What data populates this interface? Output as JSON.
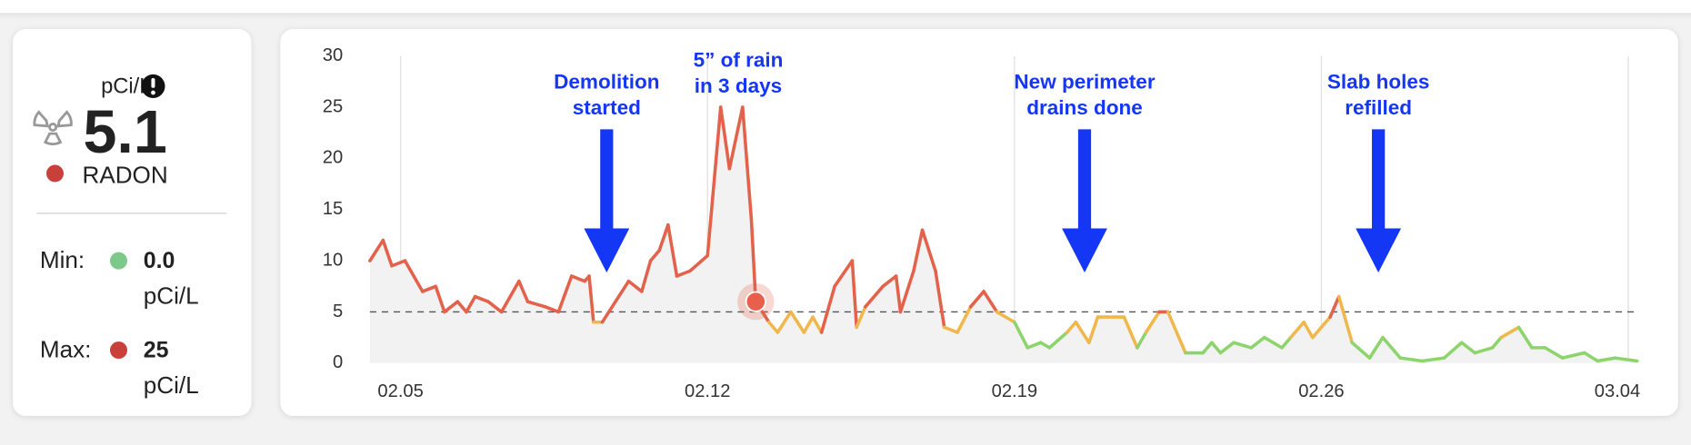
{
  "panel": {
    "unit": "pCi/L",
    "current": "5.1",
    "label": "RADON",
    "current_color": "#c9403a",
    "min_label": "Min:",
    "min_value": "0.0",
    "min_unit": "pCi/L",
    "min_color": "#7cc98a",
    "max_label": "Max:",
    "max_value": "25",
    "max_unit": "pCi/L",
    "max_color": "#c9403a"
  },
  "chart_data": {
    "type": "line",
    "x": [
      35.3,
      35.6,
      35.8,
      36.1,
      36.5,
      36.8,
      37.0,
      37.3,
      37.5,
      37.7,
      38.0,
      38.3,
      38.7,
      38.9,
      39.3,
      39.6,
      39.9,
      40.2,
      40.3,
      40.4,
      40.6,
      40.9,
      41.2,
      41.5,
      41.7,
      41.9,
      42.1,
      42.3,
      42.6,
      43.0,
      43.3,
      43.5,
      43.8,
      44.0,
      44.1,
      44.4,
      44.6,
      44.9,
      45.2,
      45.4,
      45.6,
      45.9,
      46.3,
      46.4,
      46.6,
      47.0,
      47.3,
      47.4,
      47.7,
      47.9,
      48.2,
      48.4,
      48.7,
      49.0,
      49.3,
      49.6,
      50.0,
      50.3,
      50.6,
      50.8,
      51.2,
      51.4,
      51.7,
      51.9,
      52.3,
      52.5,
      52.8,
      53.0,
      53.3,
      53.5,
      53.9,
      54.3,
      54.5,
      54.7,
      55.0,
      55.4,
      55.7,
      56.1,
      56.3,
      56.6,
      56.8,
      57.2,
      57.4,
      57.7,
      58.1,
      58.4,
      58.8,
      59.3,
      59.8,
      60.2,
      60.5,
      60.9,
      61.1,
      61.5,
      61.8,
      62.1,
      62.5,
      63.0,
      63.3,
      63.7,
      64.2
    ],
    "values": [
      10,
      12,
      9.5,
      10,
      7,
      7.5,
      5,
      6,
      5,
      6.5,
      6,
      5,
      8,
      6,
      5.5,
      5,
      8.5,
      8,
      8.5,
      4,
      4,
      6,
      8,
      7,
      10,
      11,
      13.5,
      8.5,
      9,
      10.5,
      25,
      19,
      25,
      14,
      6,
      4,
      3,
      5,
      3,
      4.5,
      3,
      7.5,
      10,
      3.5,
      5.5,
      7.5,
      8.5,
      5,
      9,
      13,
      9,
      3.5,
      3,
      5.5,
      7,
      5,
      4,
      1.5,
      2,
      1.5,
      3,
      4,
      2,
      4.5,
      4.5,
      4.5,
      1.5,
      3,
      5,
      5,
      1,
      1,
      2,
      1,
      2,
      1.5,
      2.5,
      1.5,
      2.5,
      4,
      2.5,
      4.5,
      6.5,
      2,
      0.5,
      2.5,
      0.5,
      0.2,
      0.5,
      2,
      1,
      1.5,
      2.5,
      3.5,
      1.5,
      1.5,
      0.5,
      1,
      0.2,
      0.5,
      0.2
    ],
    "xlim": [
      35.3,
      64.2
    ],
    "ylim": [
      0,
      30
    ],
    "yticks": [
      0,
      5,
      10,
      15,
      20,
      25,
      30
    ],
    "xticks": [
      {
        "value": 36,
        "label": "02.05"
      },
      {
        "value": 43,
        "label": "02.12"
      },
      {
        "value": 50,
        "label": "02.19"
      },
      {
        "value": 57,
        "label": "02.26"
      },
      {
        "value": 64,
        "label": "03.04"
      }
    ],
    "threshold": 5,
    "color_levels": [
      {
        "min": 5,
        "color": "#e2624c"
      },
      {
        "min": 3,
        "color": "#f0b84c"
      },
      {
        "min": 0,
        "color": "#8ed46c"
      }
    ],
    "area_color": "#f1f2f1",
    "marker": {
      "x": 44.1,
      "y": 6,
      "color": "#e8604c"
    },
    "annotations": [
      {
        "lines": [
          "Demolition",
          "started"
        ],
        "x": 40.7,
        "arrow": true
      },
      {
        "lines": [
          "5” of rain",
          "in 3 days"
        ],
        "x": 43.7,
        "arrow": false
      },
      {
        "lines": [
          "New perimeter",
          "drains done"
        ],
        "x": 51.6,
        "arrow": true
      },
      {
        "lines": [
          "Slab holes",
          "refilled"
        ],
        "x": 58.3,
        "arrow": true
      }
    ],
    "annotation_color": "#1436f5"
  }
}
